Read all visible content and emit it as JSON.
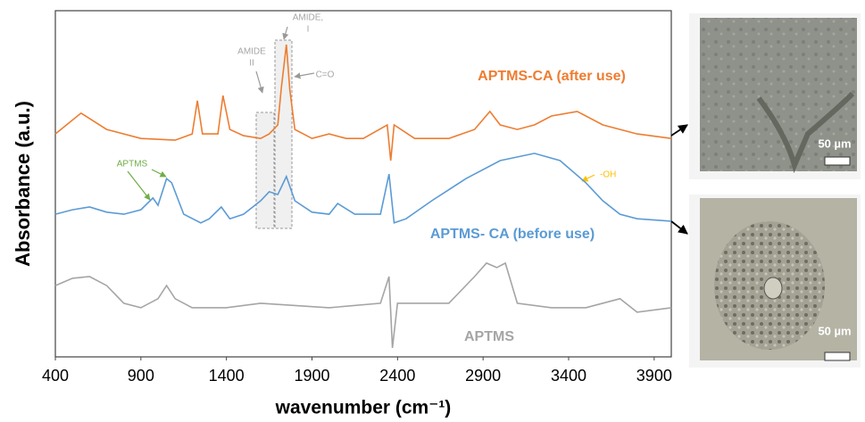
{
  "chart_data": {
    "type": "line",
    "xlabel": "wavenumber (cm⁻¹)",
    "ylabel": "Absorbance (a.u.)",
    "xlim": [
      400,
      4000
    ],
    "ylim": [
      0,
      100
    ],
    "xticks": [
      400,
      900,
      1400,
      1900,
      2400,
      2900,
      3400,
      3900
    ],
    "series": [
      {
        "name": "APTMS-CA (after use)",
        "color": "#ed7d31",
        "x": [
          400,
          550,
          700,
          900,
          1100,
          1200,
          1230,
          1260,
          1350,
          1380,
          1420,
          1500,
          1600,
          1650,
          1700,
          1720,
          1750,
          1770,
          1800,
          1900,
          2000,
          2100,
          2200,
          2340,
          2360,
          2380,
          2500,
          2700,
          2850,
          2940,
          3000,
          3100,
          3200,
          3300,
          3450,
          3600,
          3800,
          4000
        ],
        "values": [
          64.4,
          70.4,
          65.7,
          63.1,
          62.6,
          64.4,
          74.0,
          64.4,
          64.4,
          75.5,
          65.7,
          63.9,
          63.1,
          64.4,
          67.0,
          77.3,
          90.2,
          77.3,
          65.7,
          63.1,
          64.4,
          63.1,
          63.1,
          67.0,
          56.7,
          67.0,
          63.1,
          63.1,
          65.7,
          70.9,
          67.0,
          65.7,
          67.0,
          69.6,
          70.9,
          67.0,
          64.4,
          63.1
        ]
      },
      {
        "name": "APTMS- CA (before use)",
        "color": "#5b9bd5",
        "x": [
          400,
          500,
          600,
          700,
          800,
          900,
          970,
          1000,
          1050,
          1080,
          1150,
          1250,
          1300,
          1370,
          1420,
          1500,
          1600,
          1650,
          1700,
          1750,
          1800,
          1900,
          2000,
          2050,
          2150,
          2300,
          2350,
          2380,
          2450,
          2600,
          2800,
          3000,
          3200,
          3350,
          3500,
          3600,
          3700,
          3800,
          4000
        ],
        "values": [
          41.2,
          42.5,
          43.3,
          41.8,
          41.2,
          42.5,
          45.9,
          43.8,
          51.5,
          50.3,
          41.2,
          38.7,
          39.9,
          43.3,
          39.9,
          41.2,
          45.1,
          47.7,
          46.9,
          52.1,
          45.1,
          41.8,
          41.2,
          44.3,
          41.2,
          41.2,
          52.8,
          38.7,
          39.9,
          45.1,
          51.5,
          56.7,
          58.8,
          56.7,
          50.3,
          45.1,
          41.2,
          39.9,
          39.2
        ]
      },
      {
        "name": "APTMS",
        "color": "#a5a5a5",
        "x": [
          400,
          500,
          600,
          700,
          800,
          900,
          1000,
          1050,
          1100,
          1200,
          1400,
          1600,
          2000,
          2300,
          2350,
          2370,
          2400,
          2700,
          2850,
          2920,
          2980,
          3030,
          3100,
          3300,
          3500,
          3700,
          3800,
          4000
        ],
        "values": [
          20.6,
          22.7,
          23.2,
          20.6,
          15.5,
          14.2,
          16.8,
          20.6,
          16.8,
          14.2,
          14.2,
          15.5,
          14.2,
          15.5,
          23.2,
          2.6,
          15.5,
          15.5,
          23.2,
          27.1,
          25.8,
          27.1,
          15.5,
          14.2,
          14.2,
          16.8,
          12.9,
          14.2
        ]
      }
    ],
    "annotations": [
      {
        "text": [
          "AMIDE,",
          "I"
        ],
        "color": "#a5a5a5"
      },
      {
        "text": [
          "AMIDE",
          "II"
        ],
        "color": "#a5a5a5"
      },
      {
        "text": [
          "C=O"
        ],
        "color": "#a5a5a5"
      },
      {
        "text": [
          "APTMS"
        ],
        "color": "#70ad47"
      },
      {
        "text": [
          "-OH"
        ],
        "color": "#ffc000"
      }
    ]
  },
  "images": [
    {
      "scale_label": "50 µm"
    },
    {
      "scale_label": "50 µm"
    }
  ]
}
